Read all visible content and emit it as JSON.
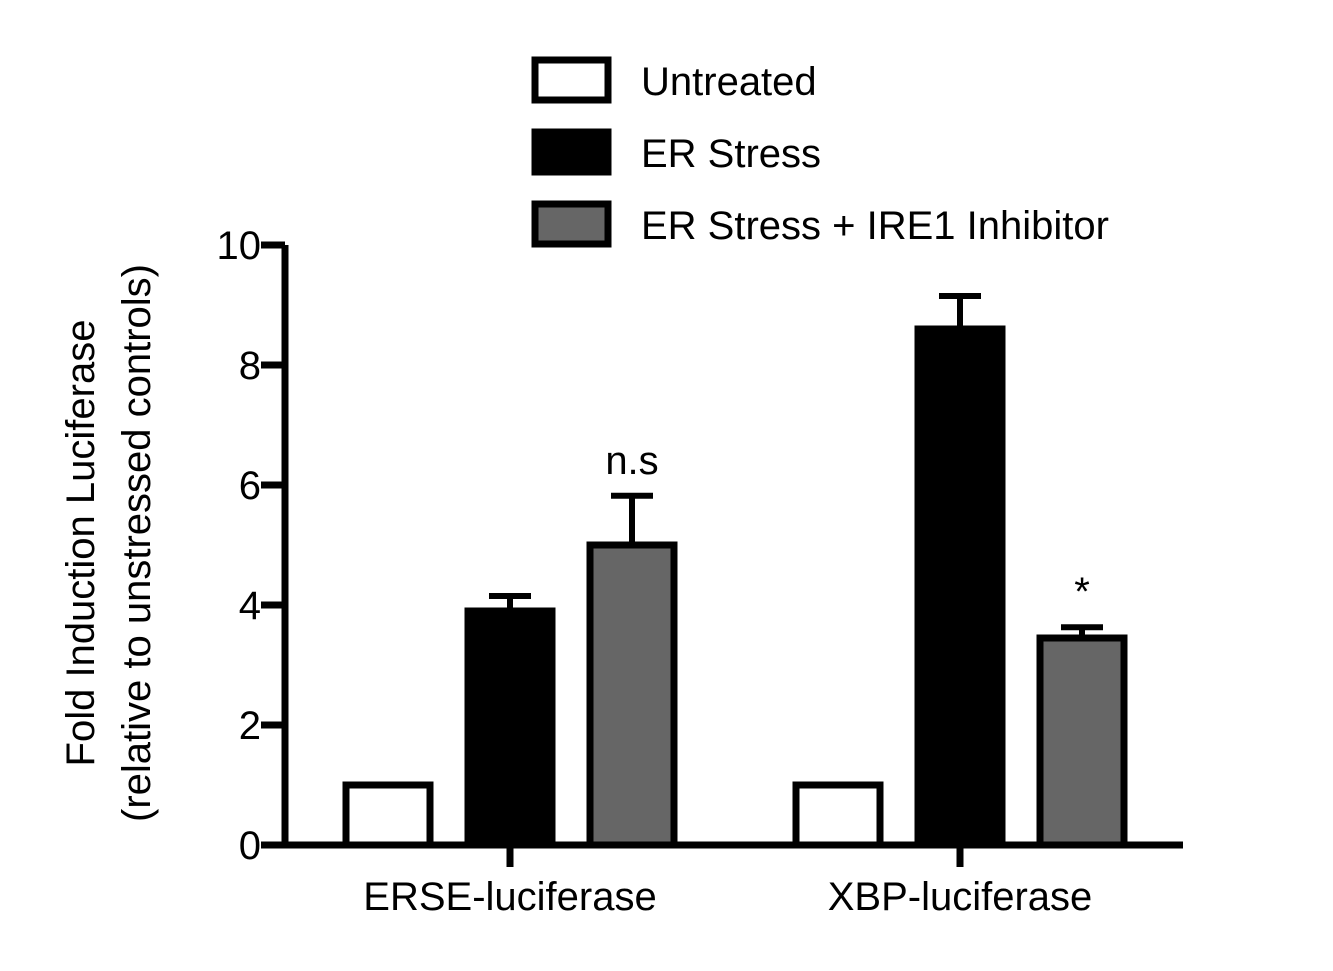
{
  "chart_data": {
    "type": "bar",
    "title": "",
    "ylabel_line1": "Fold Induction Luciferase",
    "ylabel_line2": "(relative to unstressed controls)",
    "xlabel": "",
    "ylim": [
      0,
      10
    ],
    "yticks": [
      "0",
      "2",
      "4",
      "6",
      "8",
      "10"
    ],
    "categories": [
      "ERSE-luciferase",
      "XBP-luciferase"
    ],
    "series": [
      {
        "name": "Untreated",
        "color": "#ffffff",
        "values": [
          1.0,
          1.0
        ],
        "errors": [
          null,
          null
        ]
      },
      {
        "name": "ER Stress",
        "color": "#000000",
        "values": [
          3.9,
          8.6
        ],
        "errors": [
          0.25,
          0.55
        ]
      },
      {
        "name": "ER Stress + IRE1 Inhibitor",
        "color": "#666666",
        "values": [
          5.0,
          3.45
        ],
        "errors": [
          0.82,
          0.18
        ]
      }
    ],
    "annotations": [
      {
        "text": "n.s",
        "category": "ERSE-luciferase",
        "series": "ER Stress + IRE1 Inhibitor"
      },
      {
        "text": "*",
        "category": "XBP-luciferase",
        "series": "ER Stress + IRE1 Inhibitor"
      }
    ],
    "legend_position": "top-right"
  }
}
